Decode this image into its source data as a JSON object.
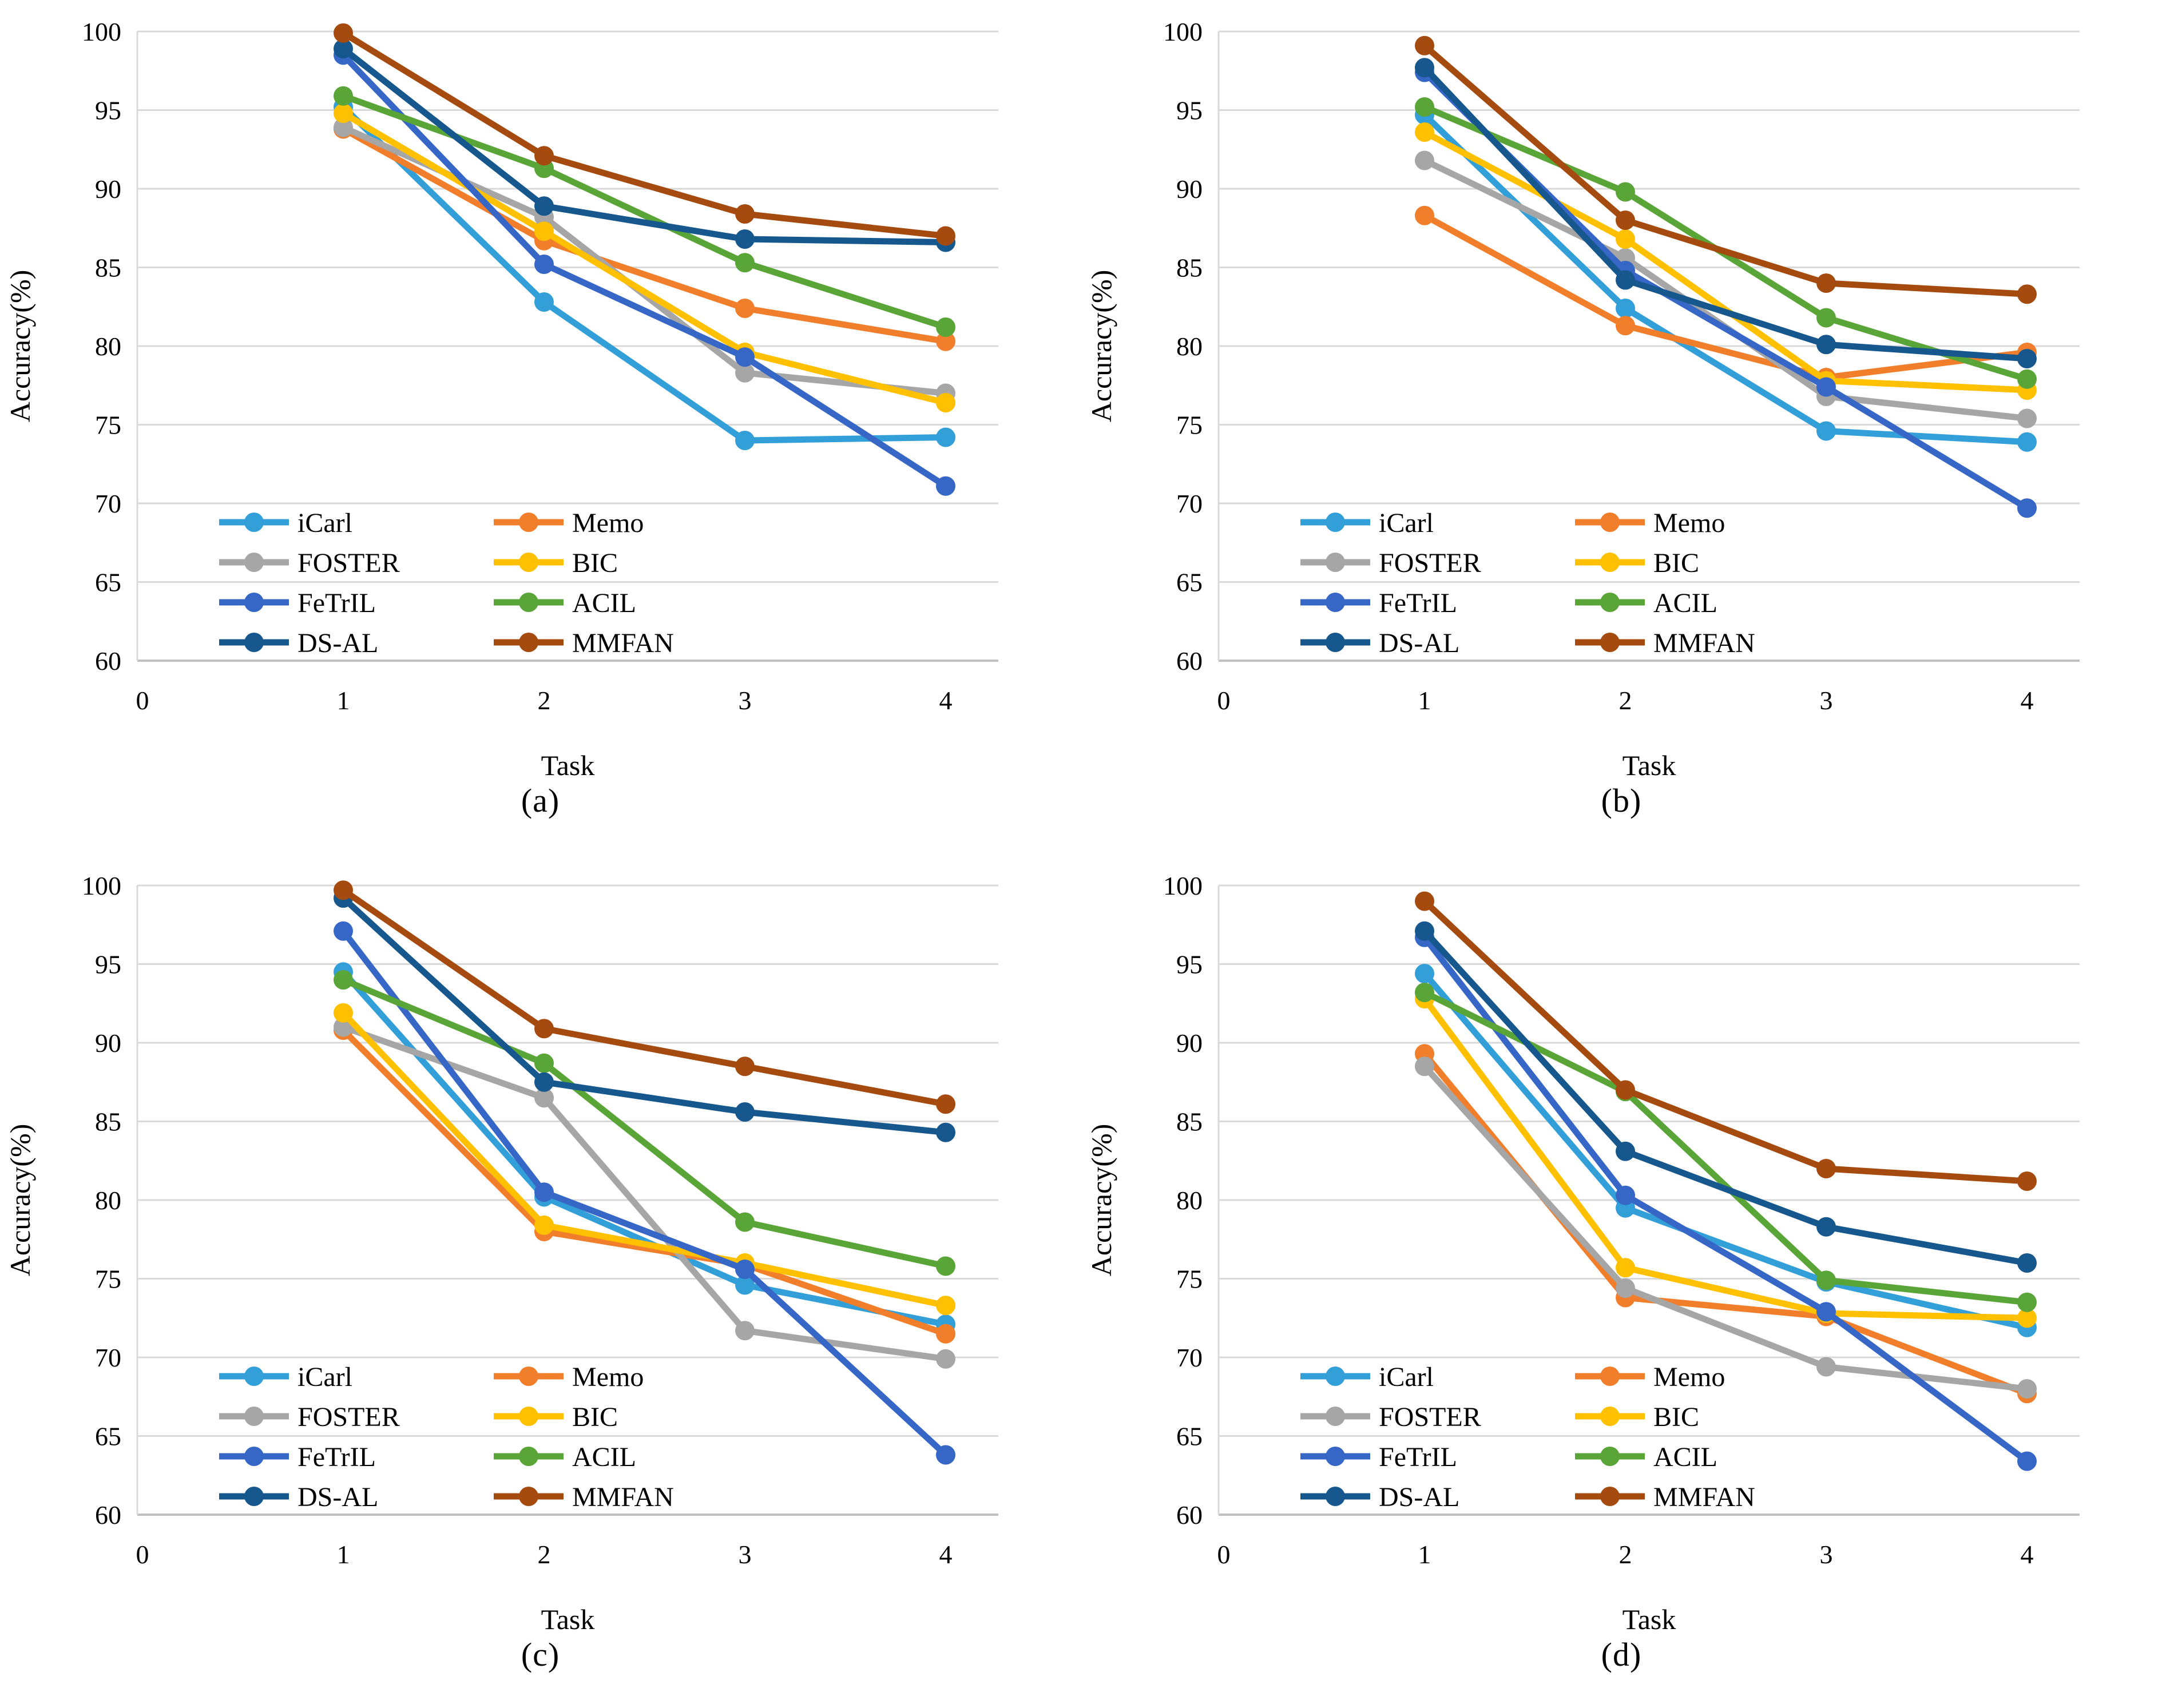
{
  "figure": {
    "background": "#ffffff",
    "gridline_color": "#d9d9d9",
    "axis_line_color": "#bfbfbf",
    "text_color": "#000000"
  },
  "chart_data": [
    {
      "type": "line",
      "label": "(a)",
      "xlabel": "Task",
      "ylabel": "Accuracy(%)",
      "ylim": [
        60,
        100
      ],
      "yticks": [
        60,
        65,
        70,
        75,
        80,
        85,
        90,
        95,
        100
      ],
      "xticks": [
        0,
        1,
        2,
        3,
        4
      ],
      "x": [
        1,
        2,
        3,
        4
      ],
      "grid": true,
      "legend_position": "lower-left",
      "series": [
        {
          "name": "iCarl",
          "color": "#339FD9",
          "values": [
            95.2,
            82.8,
            74.0,
            74.2
          ]
        },
        {
          "name": "Memo",
          "color": "#F07E2B",
          "values": [
            93.8,
            86.7,
            82.4,
            80.3
          ]
        },
        {
          "name": "FOSTER",
          "color": "#A6A6A6",
          "values": [
            93.9,
            88.2,
            78.3,
            77.0
          ]
        },
        {
          "name": "BIC",
          "color": "#FFC000",
          "values": [
            94.8,
            87.3,
            79.6,
            76.4
          ]
        },
        {
          "name": "FeTrIL",
          "color": "#3666C6",
          "values": [
            98.5,
            85.2,
            79.3,
            71.1
          ]
        },
        {
          "name": "ACIL",
          "color": "#5AA537",
          "values": [
            95.9,
            91.3,
            85.3,
            81.2
          ]
        },
        {
          "name": "DS-AL",
          "color": "#16588E",
          "values": [
            98.9,
            88.9,
            86.8,
            86.6
          ]
        },
        {
          "name": "MMFAN",
          "color": "#A64B0F",
          "values": [
            99.9,
            92.1,
            88.4,
            87.0
          ]
        }
      ]
    },
    {
      "type": "line",
      "label": "(b)",
      "xlabel": "Task",
      "ylabel": "Accuracy(%)",
      "ylim": [
        60,
        100
      ],
      "yticks": [
        60,
        65,
        70,
        75,
        80,
        85,
        90,
        95,
        100
      ],
      "xticks": [
        0,
        1,
        2,
        3,
        4
      ],
      "x": [
        1,
        2,
        3,
        4
      ],
      "grid": true,
      "legend_position": "lower-left",
      "series": [
        {
          "name": "iCarl",
          "color": "#339FD9",
          "values": [
            94.7,
            82.4,
            74.6,
            73.9
          ]
        },
        {
          "name": "Memo",
          "color": "#F07E2B",
          "values": [
            88.3,
            81.3,
            78.0,
            79.6
          ]
        },
        {
          "name": "FOSTER",
          "color": "#A6A6A6",
          "values": [
            91.8,
            85.6,
            76.8,
            75.4
          ]
        },
        {
          "name": "BIC",
          "color": "#FFC000",
          "values": [
            93.6,
            86.8,
            77.8,
            77.2
          ]
        },
        {
          "name": "FeTrIL",
          "color": "#3666C6",
          "values": [
            97.4,
            84.8,
            77.4,
            69.7
          ]
        },
        {
          "name": "ACIL",
          "color": "#5AA537",
          "values": [
            95.2,
            89.8,
            81.8,
            77.9
          ]
        },
        {
          "name": "DS-AL",
          "color": "#16588E",
          "values": [
            97.7,
            84.2,
            80.1,
            79.2
          ]
        },
        {
          "name": "MMFAN",
          "color": "#A64B0F",
          "values": [
            99.1,
            88.0,
            84.0,
            83.3
          ]
        }
      ]
    },
    {
      "type": "line",
      "label": "(c)",
      "xlabel": "Task",
      "ylabel": "Accuracy(%)",
      "ylim": [
        60,
        100
      ],
      "yticks": [
        60,
        65,
        70,
        75,
        80,
        85,
        90,
        95,
        100
      ],
      "xticks": [
        0,
        1,
        2,
        3,
        4
      ],
      "x": [
        1,
        2,
        3,
        4
      ],
      "grid": true,
      "legend_position": "lower-left",
      "series": [
        {
          "name": "iCarl",
          "color": "#339FD9",
          "values": [
            94.5,
            80.2,
            74.6,
            72.1
          ]
        },
        {
          "name": "Memo",
          "color": "#F07E2B",
          "values": [
            90.8,
            78.0,
            75.9,
            71.5
          ]
        },
        {
          "name": "FOSTER",
          "color": "#A6A6A6",
          "values": [
            91.0,
            86.5,
            71.7,
            69.9
          ]
        },
        {
          "name": "BIC",
          "color": "#FFC000",
          "values": [
            91.9,
            78.4,
            76.0,
            73.3
          ]
        },
        {
          "name": "FeTrIL",
          "color": "#3666C6",
          "values": [
            97.1,
            80.5,
            75.6,
            63.8
          ]
        },
        {
          "name": "ACIL",
          "color": "#5AA537",
          "values": [
            94.0,
            88.7,
            78.6,
            75.8
          ]
        },
        {
          "name": "DS-AL",
          "color": "#16588E",
          "values": [
            99.2,
            87.5,
            85.6,
            84.3
          ]
        },
        {
          "name": "MMFAN",
          "color": "#A64B0F",
          "values": [
            99.7,
            90.9,
            88.5,
            86.1
          ]
        }
      ]
    },
    {
      "type": "line",
      "label": "(d)",
      "xlabel": "Task",
      "ylabel": "Accuracy(%)",
      "ylim": [
        60,
        100
      ],
      "yticks": [
        60,
        65,
        70,
        75,
        80,
        85,
        90,
        95,
        100
      ],
      "xticks": [
        0,
        1,
        2,
        3,
        4
      ],
      "x": [
        1,
        2,
        3,
        4
      ],
      "grid": true,
      "legend_position": "lower-left",
      "series": [
        {
          "name": "iCarl",
          "color": "#339FD9",
          "values": [
            94.4,
            79.5,
            74.8,
            71.9
          ]
        },
        {
          "name": "Memo",
          "color": "#F07E2B",
          "values": [
            89.3,
            73.8,
            72.6,
            67.7
          ]
        },
        {
          "name": "FOSTER",
          "color": "#A6A6A6",
          "values": [
            88.5,
            74.4,
            69.4,
            68.0
          ]
        },
        {
          "name": "BIC",
          "color": "#FFC000",
          "values": [
            92.8,
            75.7,
            72.8,
            72.5
          ]
        },
        {
          "name": "FeTrIL",
          "color": "#3666C6",
          "values": [
            96.7,
            80.3,
            72.9,
            63.4
          ]
        },
        {
          "name": "ACIL",
          "color": "#5AA537",
          "values": [
            93.2,
            86.9,
            74.9,
            73.5
          ]
        },
        {
          "name": "DS-AL",
          "color": "#16588E",
          "values": [
            97.1,
            83.1,
            78.3,
            76.0
          ]
        },
        {
          "name": "MMFAN",
          "color": "#A64B0F",
          "values": [
            99.0,
            87.0,
            82.0,
            81.2
          ]
        }
      ]
    }
  ]
}
